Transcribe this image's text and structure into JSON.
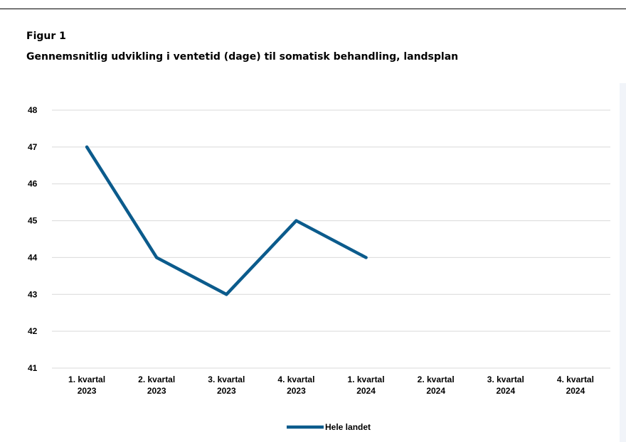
{
  "figure": {
    "label": "Figur 1",
    "title": "Gennemsnitlig udvikling i ventetid (dage) til somatisk behandling, landsplan"
  },
  "chart_data": {
    "type": "line",
    "categories": [
      [
        "1. kvartal",
        "2023"
      ],
      [
        "2. kvartal",
        "2023"
      ],
      [
        "3. kvartal",
        "2023"
      ],
      [
        "4. kvartal",
        "2023"
      ],
      [
        "1. kvartal",
        "2024"
      ],
      [
        "2. kvartal",
        "2024"
      ],
      [
        "3. kvartal",
        "2024"
      ],
      [
        "4. kvartal",
        "2024"
      ]
    ],
    "series": [
      {
        "name": "Hele landet",
        "values": [
          47,
          44,
          43,
          45,
          44,
          null,
          null,
          null
        ],
        "color": "#0b5b8c"
      }
    ],
    "ylim": [
      41,
      48
    ],
    "yticks": [
      41,
      42,
      43,
      44,
      45,
      46,
      47,
      48
    ],
    "grid": true,
    "legend": "bottom-center",
    "colors": {
      "panel_bg": "#f1f4f9",
      "plot_bg": "#ffffff",
      "grid": "#d9d9d9"
    }
  }
}
